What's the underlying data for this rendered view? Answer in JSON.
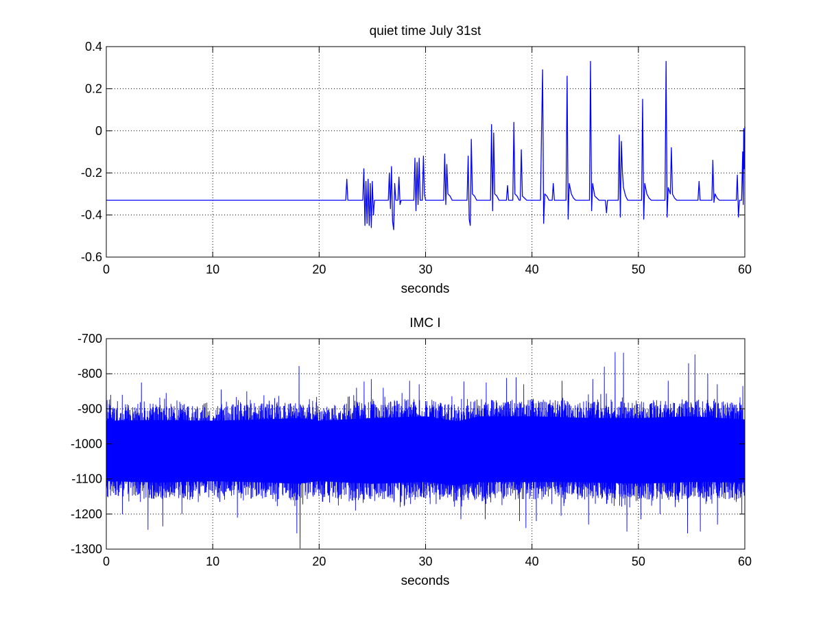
{
  "chart_data": [
    {
      "type": "line",
      "title": "quiet time July 31st",
      "xlabel": "seconds",
      "ylabel": "",
      "xlim": [
        0,
        60
      ],
      "ylim": [
        -0.6,
        0.4
      ],
      "xticks": [
        0,
        10,
        20,
        30,
        40,
        50,
        60
      ],
      "yticks": [
        -0.6,
        -0.4,
        -0.2,
        0,
        0.2,
        0.4
      ],
      "xtick_labels": [
        "0",
        "10",
        "20",
        "30",
        "40",
        "50",
        "60"
      ],
      "ytick_labels": [
        "-0.6",
        "-0.4",
        "-0.2",
        "0",
        "0.2",
        "0.4"
      ],
      "grid": true,
      "series_color": "#0000ff",
      "series": [
        {
          "baseline": -0.33,
          "points": [
            [
              0,
              -0.33
            ],
            [
              22.5,
              -0.33
            ],
            [
              22.6,
              -0.23
            ],
            [
              22.7,
              -0.33
            ],
            [
              24.1,
              -0.33
            ],
            [
              24.2,
              -0.18
            ],
            [
              24.3,
              -0.45
            ],
            [
              24.4,
              -0.24
            ],
            [
              24.5,
              -0.44
            ],
            [
              24.6,
              -0.23
            ],
            [
              24.7,
              -0.45
            ],
            [
              24.8,
              -0.25
            ],
            [
              24.9,
              -0.46
            ],
            [
              25.0,
              -0.24
            ],
            [
              25.1,
              -0.4
            ],
            [
              25.2,
              -0.33
            ],
            [
              26.5,
              -0.33
            ],
            [
              26.6,
              -0.2
            ],
            [
              26.7,
              -0.37
            ],
            [
              26.8,
              -0.17
            ],
            [
              26.9,
              -0.43
            ],
            [
              27.0,
              -0.47
            ],
            [
              27.1,
              -0.25
            ],
            [
              27.2,
              -0.33
            ],
            [
              27.4,
              -0.33
            ],
            [
              27.5,
              -0.22
            ],
            [
              27.6,
              -0.35
            ],
            [
              27.7,
              -0.33
            ],
            [
              28.9,
              -0.33
            ],
            [
              29.0,
              -0.13
            ],
            [
              29.1,
              -0.38
            ],
            [
              29.2,
              -0.15
            ],
            [
              29.3,
              -0.35
            ],
            [
              29.4,
              -0.13
            ],
            [
              29.5,
              -0.33
            ],
            [
              29.7,
              -0.33
            ],
            [
              29.8,
              -0.12
            ],
            [
              29.9,
              -0.3
            ],
            [
              30.0,
              -0.33
            ],
            [
              31.7,
              -0.33
            ],
            [
              31.8,
              -0.11
            ],
            [
              31.9,
              -0.35
            ],
            [
              32.0,
              -0.16
            ],
            [
              32.1,
              -0.3
            ],
            [
              32.3,
              -0.31
            ],
            [
              32.5,
              -0.33
            ],
            [
              33.9,
              -0.33
            ],
            [
              34.0,
              -0.12
            ],
            [
              34.1,
              -0.42
            ],
            [
              34.2,
              -0.45
            ],
            [
              34.3,
              -0.04
            ],
            [
              34.4,
              -0.3
            ],
            [
              34.6,
              -0.31
            ],
            [
              34.8,
              -0.33
            ],
            [
              36.1,
              -0.33
            ],
            [
              36.2,
              0.03
            ],
            [
              36.3,
              -0.38
            ],
            [
              36.4,
              -0.01
            ],
            [
              36.5,
              -0.3
            ],
            [
              36.7,
              -0.31
            ],
            [
              36.9,
              -0.33
            ],
            [
              37.6,
              -0.33
            ],
            [
              37.7,
              -0.26
            ],
            [
              37.8,
              -0.33
            ],
            [
              38.2,
              -0.33
            ],
            [
              38.3,
              0.04
            ],
            [
              38.4,
              -0.3
            ],
            [
              38.6,
              -0.31
            ],
            [
              38.8,
              -0.33
            ],
            [
              38.9,
              -0.33
            ],
            [
              39.0,
              -0.09
            ],
            [
              39.1,
              -0.31
            ],
            [
              39.3,
              -0.32
            ],
            [
              39.5,
              -0.33
            ],
            [
              40.8,
              -0.33
            ],
            [
              40.9,
              0.0
            ],
            [
              41.0,
              0.29
            ],
            [
              41.1,
              -0.44
            ],
            [
              41.2,
              -0.3
            ],
            [
              41.4,
              -0.31
            ],
            [
              41.6,
              -0.33
            ],
            [
              41.9,
              -0.33
            ],
            [
              42.0,
              -0.25
            ],
            [
              42.1,
              -0.33
            ],
            [
              43.2,
              -0.33
            ],
            [
              43.3,
              0.26
            ],
            [
              43.4,
              -0.42
            ],
            [
              43.5,
              -0.25
            ],
            [
              43.7,
              -0.3
            ],
            [
              43.9,
              -0.32
            ],
            [
              44.1,
              -0.33
            ],
            [
              45.4,
              -0.33
            ],
            [
              45.5,
              0.33
            ],
            [
              45.6,
              -0.38
            ],
            [
              45.7,
              -0.25
            ],
            [
              45.9,
              -0.31
            ],
            [
              46.1,
              -0.32
            ],
            [
              46.3,
              -0.33
            ],
            [
              46.9,
              -0.33
            ],
            [
              47.0,
              -0.39
            ],
            [
              47.1,
              -0.33
            ],
            [
              48.1,
              -0.33
            ],
            [
              48.2,
              -0.02
            ],
            [
              48.3,
              -0.41
            ],
            [
              48.4,
              -0.05
            ],
            [
              48.5,
              -0.2
            ],
            [
              48.6,
              -0.27
            ],
            [
              48.8,
              -0.31
            ],
            [
              49.0,
              -0.33
            ],
            [
              50.3,
              -0.33
            ],
            [
              50.4,
              0.15
            ],
            [
              50.5,
              -0.42
            ],
            [
              50.6,
              -0.25
            ],
            [
              50.8,
              -0.3
            ],
            [
              51.0,
              -0.32
            ],
            [
              51.2,
              -0.33
            ],
            [
              52.5,
              -0.33
            ],
            [
              52.6,
              0.33
            ],
            [
              52.7,
              -0.41
            ],
            [
              52.8,
              -0.27
            ],
            [
              53.0,
              -0.3
            ],
            [
              53.1,
              -0.08
            ],
            [
              53.2,
              -0.3
            ],
            [
              53.4,
              -0.32
            ],
            [
              53.6,
              -0.33
            ],
            [
              55.6,
              -0.33
            ],
            [
              55.7,
              -0.24
            ],
            [
              55.8,
              -0.33
            ],
            [
              56.9,
              -0.33
            ],
            [
              57.0,
              -0.14
            ],
            [
              57.1,
              -0.34
            ],
            [
              57.2,
              -0.3
            ],
            [
              57.4,
              -0.32
            ],
            [
              57.6,
              -0.33
            ],
            [
              59.2,
              -0.33
            ],
            [
              59.3,
              -0.21
            ],
            [
              59.4,
              -0.41
            ],
            [
              59.5,
              -0.33
            ],
            [
              59.7,
              -0.33
            ],
            [
              59.8,
              -0.1
            ],
            [
              59.85,
              -0.35
            ],
            [
              59.9,
              0.01
            ],
            [
              59.95,
              -0.18
            ],
            [
              60.0,
              0.02
            ]
          ]
        }
      ]
    },
    {
      "type": "line",
      "title": "IMC I",
      "xlabel": "seconds",
      "ylabel": "",
      "xlim": [
        0,
        60
      ],
      "ylim": [
        -1300,
        -700
      ],
      "xticks": [
        0,
        10,
        20,
        30,
        40,
        50,
        60
      ],
      "yticks": [
        -1300,
        -1200,
        -1100,
        -1000,
        -900,
        -800,
        -700
      ],
      "xtick_labels": [
        "0",
        "10",
        "20",
        "30",
        "40",
        "50",
        "60"
      ],
      "ytick_labels": [
        "-1300",
        "-1200",
        "-1100",
        "-1000",
        "-900",
        "-800",
        "-700"
      ],
      "grid": true,
      "series_color": "#0000ff",
      "series": [
        {
          "center": -1015,
          "band_upper": [
            [
              0,
              -905
            ],
            [
              5,
              -902
            ],
            [
              10,
              -905
            ],
            [
              15,
              -900
            ],
            [
              18,
              -895
            ],
            [
              20,
              -905
            ],
            [
              25,
              -895
            ],
            [
              30,
              -890
            ],
            [
              33,
              -905
            ],
            [
              35,
              -890
            ],
            [
              40,
              -890
            ],
            [
              45,
              -895
            ],
            [
              50,
              -895
            ],
            [
              55,
              -890
            ],
            [
              60,
              -900
            ]
          ],
          "band_lower": [
            [
              0,
              -1135
            ],
            [
              5,
              -1140
            ],
            [
              10,
              -1135
            ],
            [
              15,
              -1140
            ],
            [
              18,
              -1145
            ],
            [
              20,
              -1135
            ],
            [
              25,
              -1145
            ],
            [
              30,
              -1140
            ],
            [
              33,
              -1150
            ],
            [
              35,
              -1140
            ],
            [
              40,
              -1140
            ],
            [
              45,
              -1140
            ],
            [
              50,
              -1145
            ],
            [
              55,
              -1140
            ],
            [
              60,
              -1140
            ]
          ],
          "peaks_max": [
            [
              0.4,
              -860
            ],
            [
              1.5,
              -860
            ],
            [
              3.3,
              -825
            ],
            [
              5.6,
              -855
            ],
            [
              10.8,
              -845
            ],
            [
              13.2,
              -850
            ],
            [
              18.1,
              -778
            ],
            [
              23.5,
              -840
            ],
            [
              24.2,
              -822
            ],
            [
              24.9,
              -815
            ],
            [
              26.0,
              -840
            ],
            [
              28.5,
              -820
            ],
            [
              29.4,
              -830
            ],
            [
              33.6,
              -822
            ],
            [
              35.7,
              -825
            ],
            [
              37.6,
              -812
            ],
            [
              38.5,
              -810
            ],
            [
              39.2,
              -830
            ],
            [
              42.8,
              -820
            ],
            [
              45.7,
              -815
            ],
            [
              46.8,
              -780
            ],
            [
              47.8,
              -738
            ],
            [
              48.6,
              -740
            ],
            [
              52.8,
              -820
            ],
            [
              54.7,
              -770
            ],
            [
              55.3,
              -745
            ],
            [
              56.5,
              -800
            ],
            [
              57.4,
              -830
            ],
            [
              59.8,
              -835
            ]
          ],
          "peaks_min": [
            [
              1.5,
              -1200
            ],
            [
              3.9,
              -1245
            ],
            [
              5.3,
              -1235
            ],
            [
              7.1,
              -1200
            ],
            [
              12.3,
              -1210
            ],
            [
              17.9,
              -1255
            ],
            [
              18.2,
              -1298
            ],
            [
              23.4,
              -1190
            ],
            [
              27.6,
              -1180
            ],
            [
              33.3,
              -1215
            ],
            [
              35.6,
              -1215
            ],
            [
              38.8,
              -1220
            ],
            [
              39.4,
              -1240
            ],
            [
              40.4,
              -1220
            ],
            [
              42.7,
              -1205
            ],
            [
              45.3,
              -1230
            ],
            [
              48.9,
              -1250
            ],
            [
              50.2,
              -1215
            ],
            [
              52.0,
              -1200
            ],
            [
              54.6,
              -1255
            ],
            [
              55.8,
              -1250
            ],
            [
              57.4,
              -1230
            ],
            [
              59.7,
              -1200
            ]
          ]
        }
      ]
    }
  ]
}
